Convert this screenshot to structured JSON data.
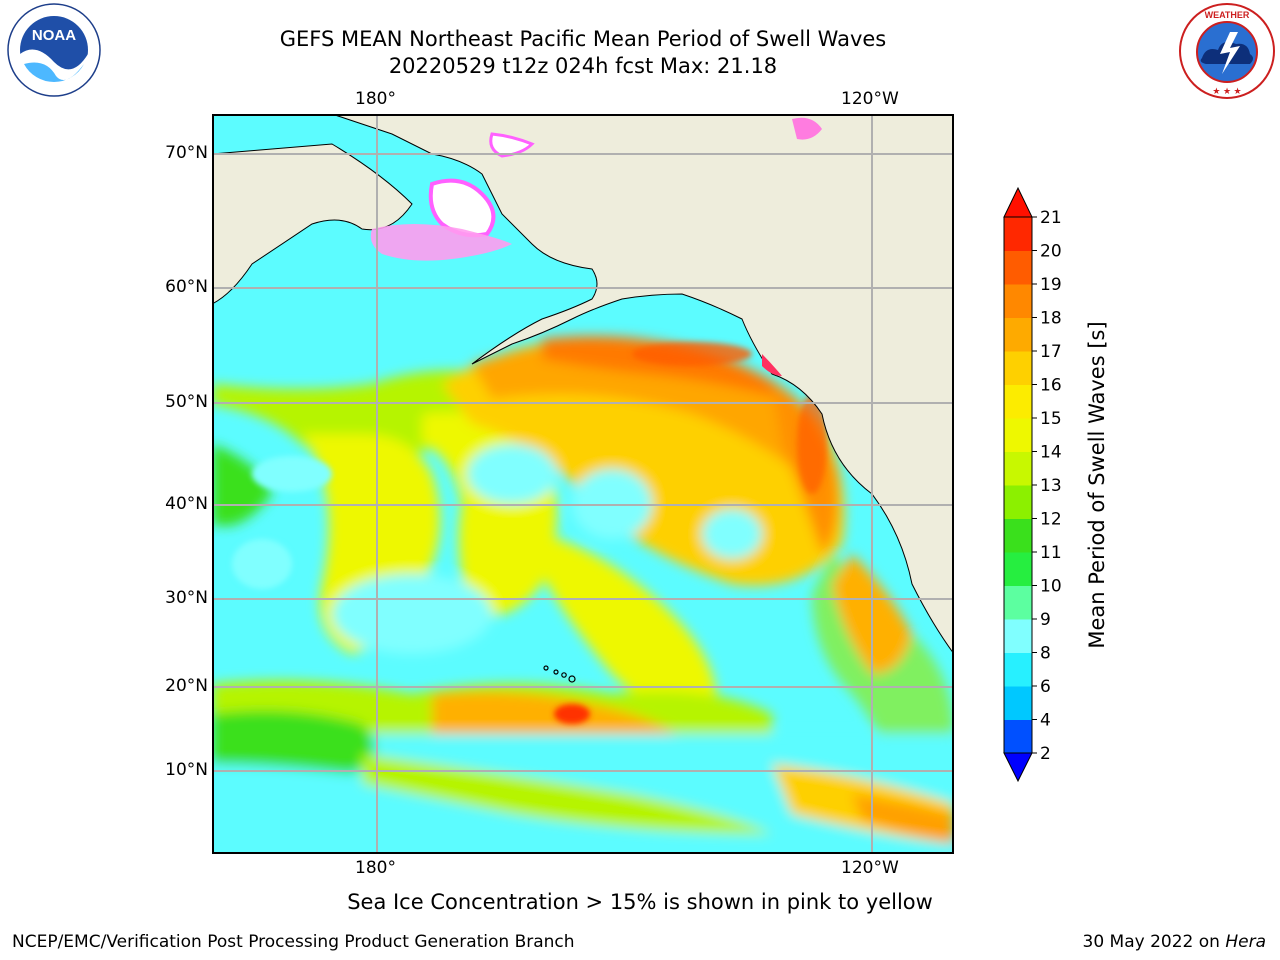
{
  "title": {
    "line1": "GEFS MEAN Northeast Pacific Mean Period of Swell Waves",
    "line2": "20220529 t12z 024h fcst   Max: 21.18"
  },
  "axes": {
    "lon_top": [
      "180°",
      "120°W"
    ],
    "lon_bottom": [
      "180°",
      "120°W"
    ],
    "lat": [
      "70°N",
      "60°N",
      "50°N",
      "40°N",
      "30°N",
      "20°N",
      "10°N"
    ]
  },
  "colorbar": {
    "label": "Mean Period of Swell Waves [s]",
    "ticks": [
      "2",
      "4",
      "6",
      "8",
      "9",
      "10",
      "11",
      "12",
      "13",
      "14",
      "15",
      "16",
      "17",
      "18",
      "19",
      "20",
      "21"
    ],
    "colors": [
      "#0050ff",
      "#00c8ff",
      "#27f0ff",
      "#80ffff",
      "#5cffa0",
      "#26ee40",
      "#3ae01c",
      "#8cf000",
      "#c8f800",
      "#eef800",
      "#fcec00",
      "#fed000",
      "#feaa00",
      "#ff8800",
      "#ff5c00",
      "#ff2800"
    ],
    "under_color": "#0000ff",
    "over_color": "#ff1000"
  },
  "map": {
    "land_color": "#eeeddc",
    "grid_color": "#b0b0b0"
  },
  "notes": {
    "ice": "Sea Ice Concentration > 15% is shown in pink to yellow",
    "footer_left": "NCEP/EMC/Verification Post Processing Product Generation Branch",
    "footer_date": "30 May 2022 on",
    "footer_machine": "Hera"
  },
  "logos": {
    "left_icon": "noaa-logo",
    "left_text": "NOAA",
    "right_icon": "national-weather-service-logo",
    "right_text": "NATIONAL WEATHER SERVICE"
  }
}
